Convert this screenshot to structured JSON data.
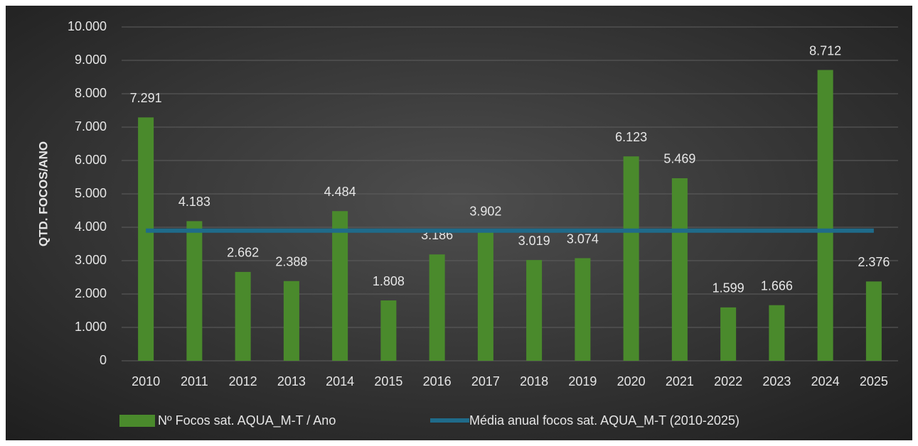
{
  "chart_data": {
    "type": "bar",
    "y_axis_label": "QTD. FOCOS/ANO",
    "categories": [
      "2010",
      "2011",
      "2012",
      "2013",
      "2014",
      "2015",
      "2016",
      "2017",
      "2018",
      "2019",
      "2020",
      "2021",
      "2022",
      "2023",
      "2024",
      "2025"
    ],
    "series": [
      {
        "name": "Nº Focos sat. AQUA_M-T / Ano",
        "type": "bar",
        "color": "#4a8a2c",
        "values": [
          7291,
          4183,
          2662,
          2388,
          4484,
          1808,
          3186,
          3902,
          3019,
          3074,
          6123,
          5469,
          1599,
          1666,
          8712,
          2376
        ],
        "value_labels": [
          "7.291",
          "4.183",
          "2.662",
          "2.388",
          "4.484",
          "1.808",
          "3.186",
          "3.902",
          "3.019",
          "3.074",
          "6.123",
          "5.469",
          "1.599",
          "1.666",
          "8.712",
          "2.376"
        ]
      },
      {
        "name": "Média anual focos sat. AQUA_M-T (2010-2025)",
        "type": "line",
        "color": "#1f6b8a",
        "values": [
          3900,
          3900,
          3900,
          3900,
          3900,
          3900,
          3900,
          3900,
          3900,
          3900,
          3900,
          3900,
          3900,
          3900,
          3900,
          3900
        ]
      }
    ],
    "ylim": [
      0,
      10000
    ],
    "yticks": [
      0,
      {
        "value": 1000,
        "label": "1.000"
      },
      {
        "value": 2000,
        "label": "2.000"
      },
      {
        "value": 3000,
        "label": "3.000"
      },
      {
        "value": 4000,
        "label": "4.000"
      },
      {
        "value": 5000,
        "label": "5.000"
      },
      {
        "value": 6000,
        "label": "6.000"
      },
      {
        "value": 7000,
        "label": "7.000"
      },
      {
        "value": 8000,
        "label": "8.000"
      },
      {
        "value": 9000,
        "label": "9.000"
      },
      {
        "value": 10000,
        "label": "10.000"
      }
    ],
    "grid": true,
    "legend": "bottom"
  }
}
